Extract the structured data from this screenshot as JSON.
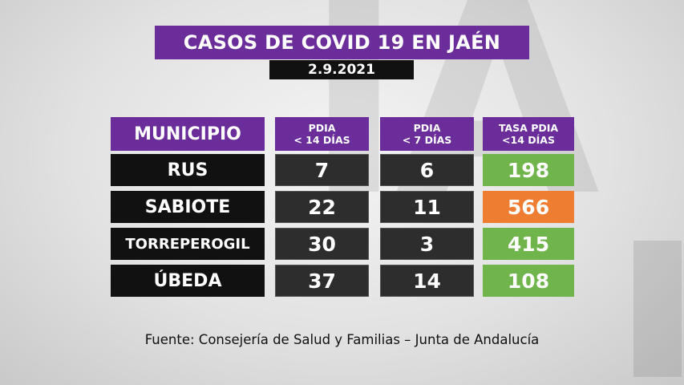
{
  "title": "CASOS DE COVID 19 EN JAÉN",
  "date": "2.9.2021",
  "table": {
    "headers": {
      "municipio": "MUNICIPIO",
      "pdia14_line1": "PDIA",
      "pdia14_line2": "< 14 DÍAS",
      "pdia7_line1": "PDIA",
      "pdia7_line2": "< 7 DÍAS",
      "tasa_line1": "TASA PDIA",
      "tasa_line2": "<14 DÍAS"
    },
    "rows": [
      {
        "municipio": "RUS",
        "pdia14": "7",
        "pdia7": "6",
        "tasa": "198",
        "tasa_color": "#6fb54c"
      },
      {
        "municipio": "SABIOTE",
        "pdia14": "22",
        "pdia7": "11",
        "tasa": "566",
        "tasa_color": "#ee7d31"
      },
      {
        "municipio": "TORREPEROGIL",
        "pdia14": "30",
        "pdia7": "3",
        "tasa": "415",
        "tasa_color": "#6fb54c"
      },
      {
        "municipio": "ÚBEDA",
        "pdia14": "37",
        "pdia7": "14",
        "tasa": "108",
        "tasa_color": "#6fb54c"
      }
    ]
  },
  "source": "Fuente: Consejería de Salud y Familias – Junta de Andalucía",
  "colors": {
    "purple": "#6a2d9a",
    "green": "#6fb54c",
    "orange": "#ee7d31"
  }
}
